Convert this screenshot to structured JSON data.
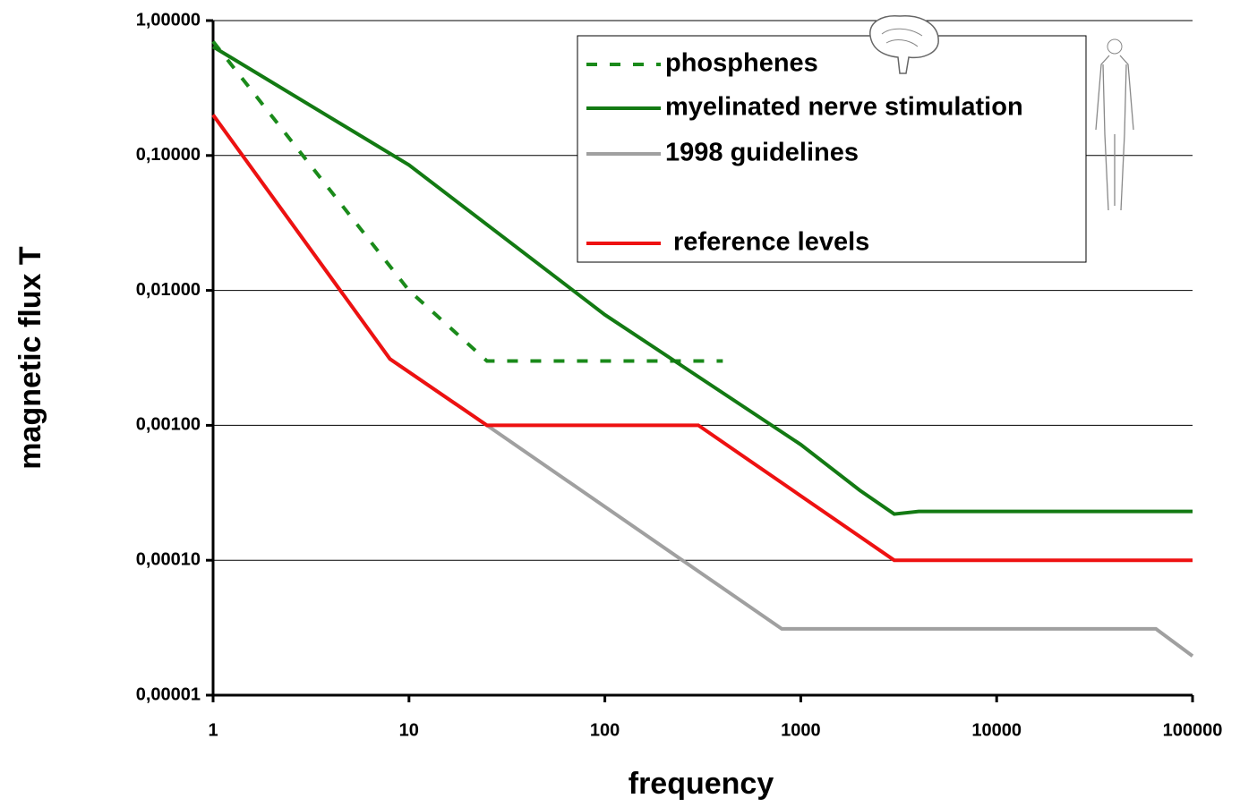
{
  "chart_data": {
    "type": "line",
    "x_label": "frequency",
    "y_label": "magnetic flux T",
    "log_x": true,
    "log_y": true,
    "grid": true,
    "xlim": [
      1,
      100000
    ],
    "xticks": [
      1,
      10,
      100,
      1000,
      10000,
      100000
    ],
    "ylim": [
      1e-05,
      1
    ],
    "yticks": [
      {
        "value": 1e-05,
        "label": "0,00001"
      },
      {
        "value": 0.0001,
        "label": "0,00010"
      },
      {
        "value": 0.001,
        "label": "0,00100"
      },
      {
        "value": 0.01,
        "label": "0,01000"
      },
      {
        "value": 0.1,
        "label": "0,10000"
      },
      {
        "value": 1,
        "label": "1,00000"
      }
    ],
    "series": [
      {
        "name": "phosphenes",
        "color": "#1a8a1a",
        "style": "dashed",
        "x": [
          1,
          10,
          25,
          400
        ],
        "values": [
          0.7,
          0.01,
          0.003,
          0.003
        ]
      },
      {
        "name": "myelinated nerve stimulation",
        "color": "#137a13",
        "style": "solid",
        "x": [
          1,
          10,
          100,
          1000,
          2000,
          3000,
          4000,
          100000
        ],
        "values": [
          0.64,
          0.085,
          0.0066,
          0.00072,
          0.00033,
          0.00022,
          0.00023,
          0.00023
        ]
      },
      {
        "name": "1998 guidelines",
        "color": "#a0a0a0",
        "style": "solid",
        "x": [
          1,
          8,
          25,
          800,
          65000,
          100000
        ],
        "values": [
          0.2,
          0.0031,
          0.001,
          3.1e-05,
          3.1e-05,
          1.95e-05
        ]
      },
      {
        "name": "reference levels",
        "color": "#ee1111",
        "style": "solid",
        "x": [
          1,
          8,
          25,
          300,
          3000,
          100000
        ],
        "values": [
          0.2,
          0.0031,
          0.001,
          0.001,
          0.0001,
          0.0001
        ]
      }
    ]
  }
}
